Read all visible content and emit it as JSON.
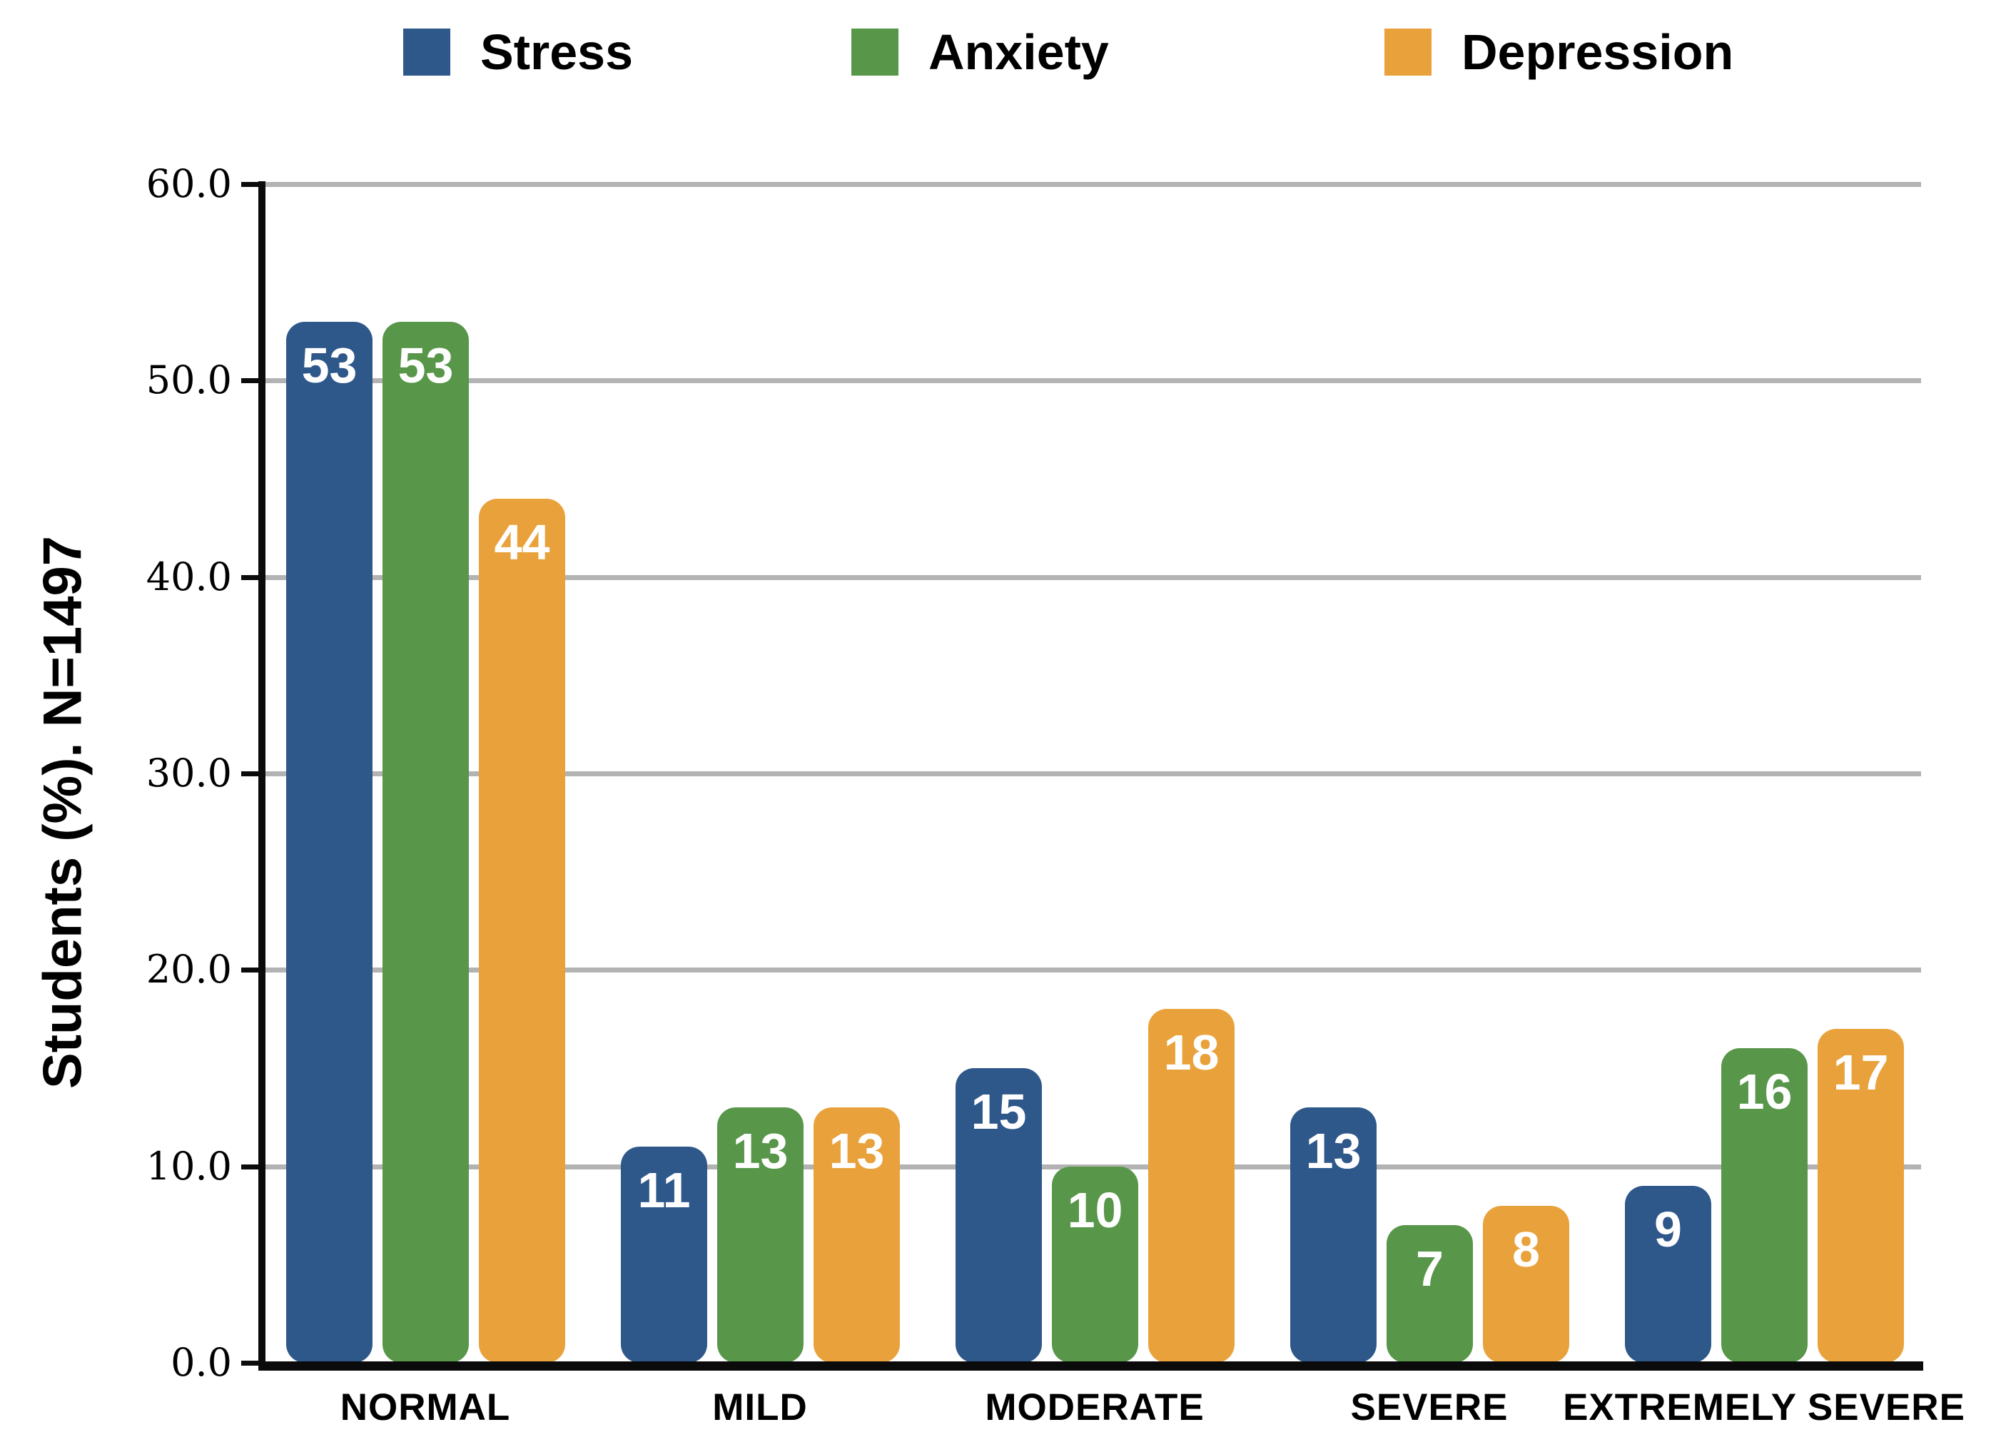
{
  "legend": [
    {
      "label": "Stress",
      "color": "#2E578A"
    },
    {
      "label": "Anxiety",
      "color": "#58964A"
    },
    {
      "label": "Depression",
      "color": "#E9A23B"
    }
  ],
  "y_axis": {
    "title": "Students (%). N=1497",
    "ticks": [
      "0.0",
      "10.0",
      "20.0",
      "30.0",
      "40.0",
      "50.0",
      "60.0"
    ],
    "min": 0,
    "max": 60
  },
  "chart_data": {
    "type": "bar",
    "title": "",
    "categories": [
      "NORMAL",
      "MILD",
      "MODERATE",
      "SEVERE",
      "EXTREMELY SEVERE"
    ],
    "series": [
      {
        "name": "Stress",
        "color": "#2E578A",
        "values": [
          53,
          11,
          15,
          13,
          9
        ]
      },
      {
        "name": "Anxiety",
        "color": "#58964A",
        "values": [
          53,
          13,
          10,
          7,
          16
        ]
      },
      {
        "name": "Depression",
        "color": "#E9A23B",
        "values": [
          44,
          13,
          18,
          8,
          17
        ]
      }
    ],
    "xlabel": "",
    "ylabel": "Students (%). N=1497",
    "ylim": [
      0,
      60
    ],
    "gridline_values": [
      10,
      20,
      30,
      40,
      50,
      60
    ],
    "grid": true,
    "legend_position": "top",
    "value_labels": "inside-top, white"
  }
}
